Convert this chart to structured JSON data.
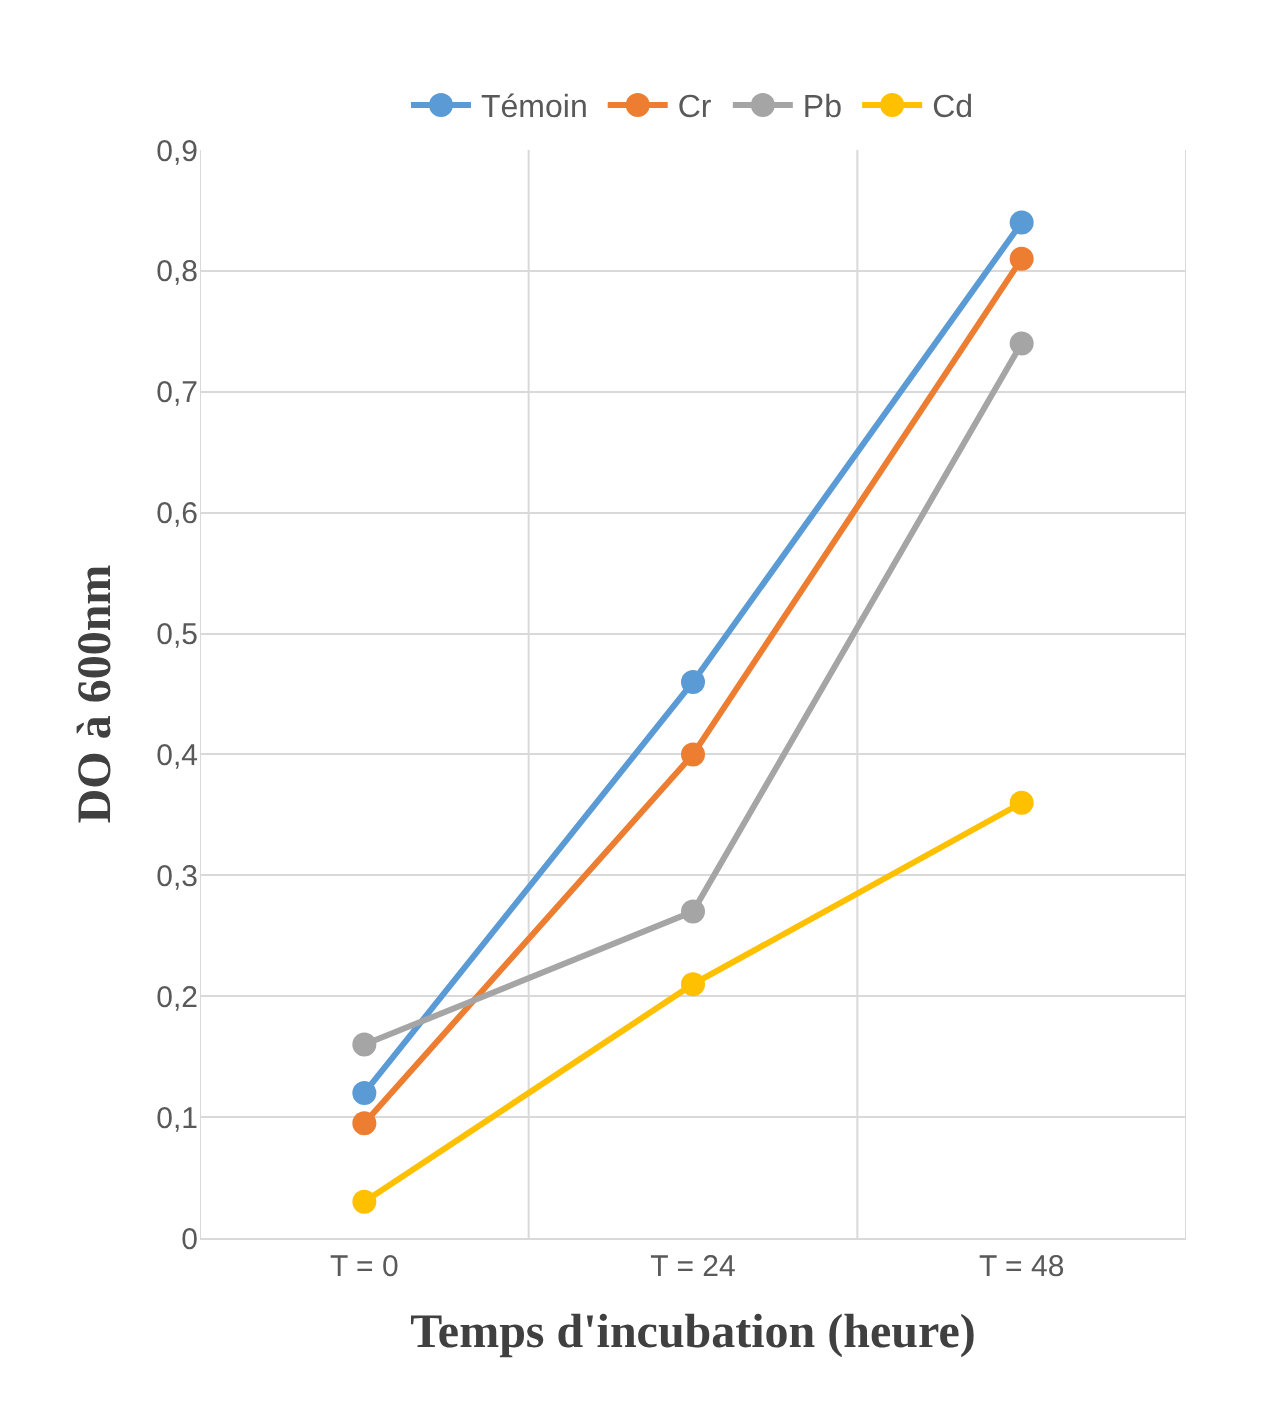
{
  "chart_data": {
    "type": "line",
    "xlabel": "Temps d'incubation (heure)",
    "ylabel": "DO à 600nm",
    "categories": [
      "T = 0",
      "T = 24",
      "T = 48"
    ],
    "series": [
      {
        "name": "Témoin",
        "color": "#5b9bd5",
        "values": [
          0.12,
          0.46,
          0.84
        ]
      },
      {
        "name": "Cr",
        "color": "#ed7d31",
        "values": [
          0.095,
          0.4,
          0.81
        ]
      },
      {
        "name": "Pb",
        "color": "#a5a5a5",
        "values": [
          0.16,
          0.27,
          0.74
        ]
      },
      {
        "name": "Cd",
        "color": "#ffc000",
        "values": [
          0.03,
          0.21,
          0.36
        ]
      }
    ],
    "ylim": [
      0,
      0.9
    ],
    "yticks": [
      0,
      {
        "value": 0.1,
        "label": "0,1"
      },
      {
        "value": 0.2,
        "label": "0,2"
      },
      {
        "value": 0.3,
        "label": "0,3"
      },
      {
        "value": 0.4,
        "label": "0,4"
      },
      {
        "value": 0.5,
        "label": "0,5"
      },
      {
        "value": 0.6,
        "label": "0,6"
      },
      {
        "value": 0.7,
        "label": "0,7"
      },
      {
        "value": 0.8,
        "label": "0,8"
      },
      {
        "value": 0.9,
        "label": "0,9"
      }
    ],
    "grid": true,
    "legend": "top",
    "marker": "circle",
    "line_style": "solid"
  }
}
